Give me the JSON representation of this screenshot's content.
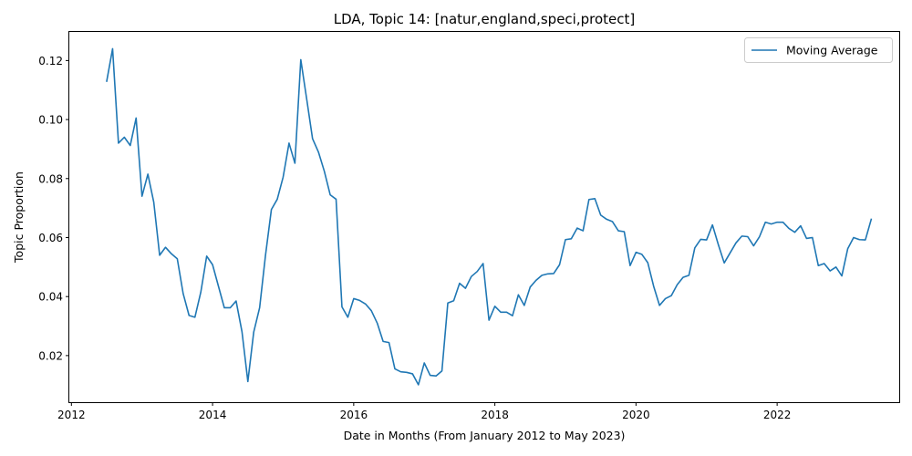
{
  "chart_data": {
    "type": "line",
    "title": "LDA, Topic 14: [natur,england,speci,protect]",
    "xlabel": "Date in Months (From January 2012 to May 2023)",
    "ylabel": "Topic Proportion",
    "xlim": [
      2011.97,
      2023.73
    ],
    "ylim": [
      0.0042,
      0.1297
    ],
    "x_ticks": [
      2012,
      2014,
      2016,
      2018,
      2020,
      2022
    ],
    "x_tick_labels": [
      "2012",
      "2014",
      "2016",
      "2018",
      "2020",
      "2022"
    ],
    "y_ticks": [
      0.02,
      0.04,
      0.06,
      0.08,
      0.1,
      0.12
    ],
    "y_tick_labels": [
      "0.02",
      "0.04",
      "0.06",
      "0.08",
      "0.10",
      "0.12"
    ],
    "legend": "top-right",
    "grid": false,
    "series": [
      {
        "name": "Moving Average",
        "color": "#1f77b4",
        "x": [
          "2012-07",
          "2012-08",
          "2012-09",
          "2012-10",
          "2012-11",
          "2012-12",
          "2013-01",
          "2013-02",
          "2013-03",
          "2013-04",
          "2013-05",
          "2013-06",
          "2013-07",
          "2013-08",
          "2013-09",
          "2013-10",
          "2013-11",
          "2013-12",
          "2014-01",
          "2014-02",
          "2014-03",
          "2014-04",
          "2014-05",
          "2014-06",
          "2014-07",
          "2014-08",
          "2014-09",
          "2014-10",
          "2014-11",
          "2014-12",
          "2015-01",
          "2015-02",
          "2015-03",
          "2015-04",
          "2015-05",
          "2015-06",
          "2015-07",
          "2015-08",
          "2015-09",
          "2015-10",
          "2015-11",
          "2015-12",
          "2016-01",
          "2016-02",
          "2016-03",
          "2016-04",
          "2016-05",
          "2016-06",
          "2016-07",
          "2016-08",
          "2016-09",
          "2016-10",
          "2016-11",
          "2016-12",
          "2017-01",
          "2017-02",
          "2017-03",
          "2017-04",
          "2017-05",
          "2017-06",
          "2017-07",
          "2017-08",
          "2017-09",
          "2017-10",
          "2017-11",
          "2017-12",
          "2018-01",
          "2018-02",
          "2018-03",
          "2018-04",
          "2018-05",
          "2018-06",
          "2018-07",
          "2018-08",
          "2018-09",
          "2018-10",
          "2018-11",
          "2018-12",
          "2019-01",
          "2019-02",
          "2019-03",
          "2019-04",
          "2019-05",
          "2019-06",
          "2019-07",
          "2019-08",
          "2019-09",
          "2019-10",
          "2019-11",
          "2019-12",
          "2020-01",
          "2020-02",
          "2020-03",
          "2020-04",
          "2020-05",
          "2020-06",
          "2020-07",
          "2020-08",
          "2020-09",
          "2020-10",
          "2020-11",
          "2020-12",
          "2021-01",
          "2021-02",
          "2021-03",
          "2021-04",
          "2021-05",
          "2021-06",
          "2021-07",
          "2021-08",
          "2021-09",
          "2021-10",
          "2021-11",
          "2021-12",
          "2022-01",
          "2022-02",
          "2022-03",
          "2022-04",
          "2022-05",
          "2022-06",
          "2022-07",
          "2022-08",
          "2022-09",
          "2022-10",
          "2022-11",
          "2022-12",
          "2023-01",
          "2023-02",
          "2023-03",
          "2023-04",
          "2023-05"
        ],
        "values": [
          0.113,
          0.124,
          0.092,
          0.094,
          0.0912,
          0.1005,
          0.074,
          0.0815,
          0.072,
          0.054,
          0.0567,
          0.0545,
          0.0528,
          0.041,
          0.0336,
          0.033,
          0.0415,
          0.0537,
          0.0508,
          0.0435,
          0.0362,
          0.0362,
          0.0385,
          0.0281,
          0.0112,
          0.028,
          0.0362,
          0.054,
          0.0695,
          0.073,
          0.0805,
          0.092,
          0.0852,
          0.1203,
          0.107,
          0.0935,
          0.089,
          0.0825,
          0.0745,
          0.073,
          0.0365,
          0.033,
          0.0393,
          0.0387,
          0.0375,
          0.0352,
          0.031,
          0.0248,
          0.0244,
          0.0155,
          0.0145,
          0.0143,
          0.0138,
          0.0101,
          0.0175,
          0.0133,
          0.0131,
          0.0148,
          0.0378,
          0.0386,
          0.0445,
          0.0428,
          0.0468,
          0.0485,
          0.0512,
          0.032,
          0.0367,
          0.0347,
          0.0347,
          0.0335,
          0.0406,
          0.037,
          0.0432,
          0.0455,
          0.0472,
          0.0477,
          0.0478,
          0.0508,
          0.0593,
          0.0596,
          0.0632,
          0.0623,
          0.0729,
          0.0732,
          0.0676,
          0.0662,
          0.0654,
          0.0623,
          0.062,
          0.0505,
          0.055,
          0.0543,
          0.0515,
          0.0435,
          0.037,
          0.0393,
          0.0403,
          0.044,
          0.0465,
          0.0472,
          0.0565,
          0.0594,
          0.0592,
          0.0643,
          0.0576,
          0.0514,
          0.0548,
          0.0582,
          0.0605,
          0.0603,
          0.0572,
          0.0603,
          0.0652,
          0.0646,
          0.0652,
          0.0652,
          0.0631,
          0.0618,
          0.064,
          0.0597,
          0.06,
          0.0505,
          0.0512,
          0.0487,
          0.05,
          0.047,
          0.0562,
          0.06,
          0.0593,
          0.0592,
          0.0662
        ]
      }
    ]
  }
}
